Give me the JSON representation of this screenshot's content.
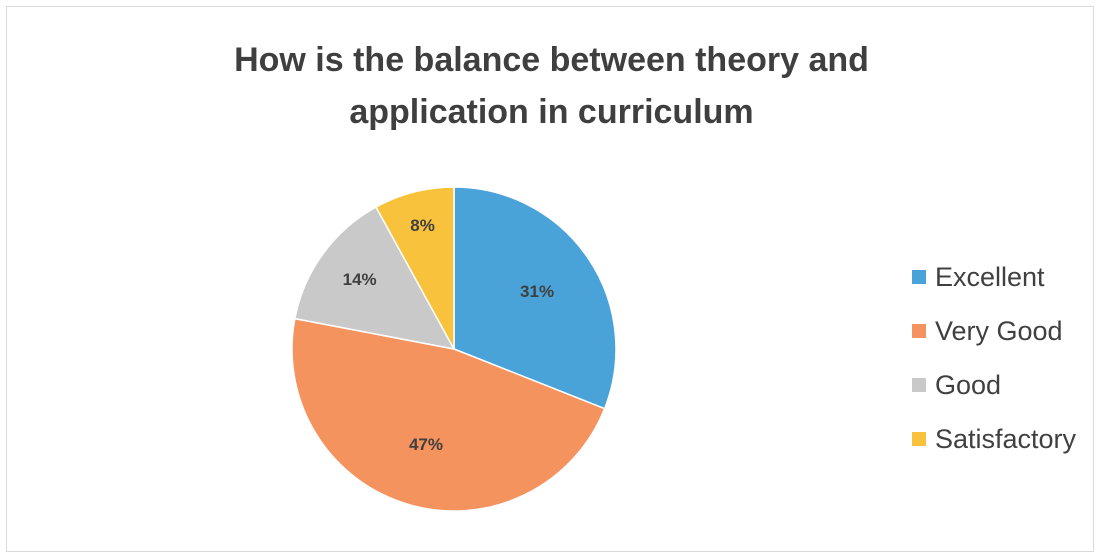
{
  "chart_data": {
    "type": "pie",
    "title_lines": [
      "How is the balance between theory and",
      "application in curriculum"
    ],
    "categories": [
      "Excellent",
      "Very Good",
      "Good",
      "Satisfactory"
    ],
    "values": [
      31,
      47,
      14,
      8
    ],
    "data_labels": [
      "31%",
      "47%",
      "14%",
      "8%"
    ],
    "colors": [
      "#4aa3d8",
      "#f5935f",
      "#c9c9c9",
      "#f9c23c"
    ],
    "legend_position": "right",
    "start_angle_deg": 0,
    "direction": "clockwise"
  }
}
